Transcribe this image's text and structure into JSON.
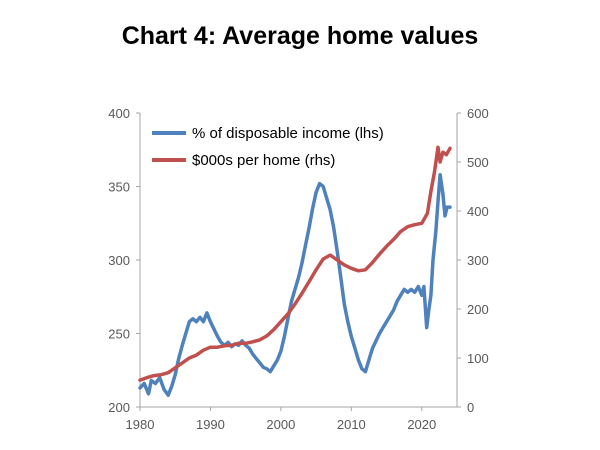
{
  "chart_data": {
    "type": "line",
    "title": "Chart 4: Average home values",
    "legend_position": "top-left",
    "grid": false,
    "x_ticks": [
      1980,
      1990,
      2000,
      2010,
      2020
    ],
    "xlim": [
      1980,
      2025
    ],
    "y_left": {
      "lim": [
        200,
        400
      ],
      "ticks": [
        200,
        250,
        300,
        350,
        400
      ]
    },
    "y_right": {
      "lim": [
        0,
        600
      ],
      "ticks": [
        0,
        100,
        200,
        300,
        400,
        500,
        600
      ]
    },
    "series": [
      {
        "name": "% of disposable income (lhs)",
        "axis": "left",
        "color": "#4F81BD",
        "points": [
          [
            1980,
            213
          ],
          [
            1980.6,
            216
          ],
          [
            1981.2,
            209
          ],
          [
            1981.6,
            218
          ],
          [
            1982.2,
            216
          ],
          [
            1982.8,
            220
          ],
          [
            1983.4,
            212
          ],
          [
            1984,
            208
          ],
          [
            1984.5,
            214
          ],
          [
            1985,
            222
          ],
          [
            1985.5,
            233
          ],
          [
            1986,
            242
          ],
          [
            1986.5,
            250
          ],
          [
            1987,
            258
          ],
          [
            1987.5,
            260
          ],
          [
            1988,
            258
          ],
          [
            1988.5,
            261
          ],
          [
            1989,
            258
          ],
          [
            1989.5,
            264
          ],
          [
            1990,
            258
          ],
          [
            1990.5,
            253
          ],
          [
            1991,
            248
          ],
          [
            1991.5,
            244
          ],
          [
            1992,
            242
          ],
          [
            1992.5,
            244
          ],
          [
            1993,
            241
          ],
          [
            1993.5,
            243
          ],
          [
            1994,
            242
          ],
          [
            1994.5,
            245
          ],
          [
            1995,
            242
          ],
          [
            1995.5,
            240
          ],
          [
            1996,
            236
          ],
          [
            1996.5,
            233
          ],
          [
            1997,
            230
          ],
          [
            1997.5,
            227
          ],
          [
            1998,
            226
          ],
          [
            1998.5,
            224
          ],
          [
            1999,
            228
          ],
          [
            1999.5,
            232
          ],
          [
            2000,
            238
          ],
          [
            2000.5,
            248
          ],
          [
            2001,
            260
          ],
          [
            2001.5,
            272
          ],
          [
            2002,
            280
          ],
          [
            2002.5,
            288
          ],
          [
            2003,
            298
          ],
          [
            2003.5,
            310
          ],
          [
            2004,
            322
          ],
          [
            2004.5,
            335
          ],
          [
            2005,
            346
          ],
          [
            2005.5,
            352
          ],
          [
            2006,
            350
          ],
          [
            2006.5,
            342
          ],
          [
            2007,
            334
          ],
          [
            2007.5,
            322
          ],
          [
            2008,
            306
          ],
          [
            2008.5,
            288
          ],
          [
            2009,
            270
          ],
          [
            2009.5,
            258
          ],
          [
            2010,
            248
          ],
          [
            2010.5,
            240
          ],
          [
            2011,
            232
          ],
          [
            2011.5,
            226
          ],
          [
            2012,
            224
          ],
          [
            2012.5,
            232
          ],
          [
            2013,
            240
          ],
          [
            2013.5,
            245
          ],
          [
            2014,
            250
          ],
          [
            2014.5,
            254
          ],
          [
            2015,
            258
          ],
          [
            2015.5,
            262
          ],
          [
            2016,
            266
          ],
          [
            2016.5,
            272
          ],
          [
            2017,
            276
          ],
          [
            2017.5,
            280
          ],
          [
            2018,
            278
          ],
          [
            2018.5,
            280
          ],
          [
            2019,
            278
          ],
          [
            2019.5,
            282
          ],
          [
            2020,
            276
          ],
          [
            2020.3,
            282
          ],
          [
            2020.7,
            254
          ],
          [
            2021,
            266
          ],
          [
            2021.3,
            276
          ],
          [
            2021.6,
            300
          ],
          [
            2022,
            320
          ],
          [
            2022.3,
            340
          ],
          [
            2022.6,
            358
          ],
          [
            2023,
            345
          ],
          [
            2023.3,
            330
          ],
          [
            2023.6,
            336
          ],
          [
            2024,
            336
          ]
        ]
      },
      {
        "name": "$000s per home (rhs)",
        "axis": "right",
        "color": "#C0504D",
        "points": [
          [
            1980,
            55
          ],
          [
            1981,
            60
          ],
          [
            1982,
            64
          ],
          [
            1983,
            66
          ],
          [
            1984,
            70
          ],
          [
            1985,
            80
          ],
          [
            1986,
            90
          ],
          [
            1987,
            100
          ],
          [
            1988,
            106
          ],
          [
            1989,
            116
          ],
          [
            1990,
            122
          ],
          [
            1991,
            122
          ],
          [
            1992,
            125
          ],
          [
            1993,
            126
          ],
          [
            1994,
            130
          ],
          [
            1995,
            130
          ],
          [
            1996,
            133
          ],
          [
            1997,
            137
          ],
          [
            1998,
            145
          ],
          [
            1999,
            158
          ],
          [
            2000,
            174
          ],
          [
            2001,
            190
          ],
          [
            2002,
            210
          ],
          [
            2003,
            232
          ],
          [
            2004,
            256
          ],
          [
            2005,
            280
          ],
          [
            2006,
            302
          ],
          [
            2007,
            310
          ],
          [
            2008,
            300
          ],
          [
            2009,
            290
          ],
          [
            2010,
            283
          ],
          [
            2011,
            278
          ],
          [
            2012,
            280
          ],
          [
            2013,
            295
          ],
          [
            2014,
            312
          ],
          [
            2015,
            328
          ],
          [
            2016,
            342
          ],
          [
            2017,
            358
          ],
          [
            2018,
            368
          ],
          [
            2019,
            372
          ],
          [
            2020,
            375
          ],
          [
            2020.8,
            395
          ],
          [
            2021.3,
            440
          ],
          [
            2021.8,
            480
          ],
          [
            2022.3,
            530
          ],
          [
            2022.6,
            500
          ],
          [
            2023,
            520
          ],
          [
            2023.5,
            515
          ],
          [
            2024,
            528
          ]
        ]
      }
    ]
  }
}
